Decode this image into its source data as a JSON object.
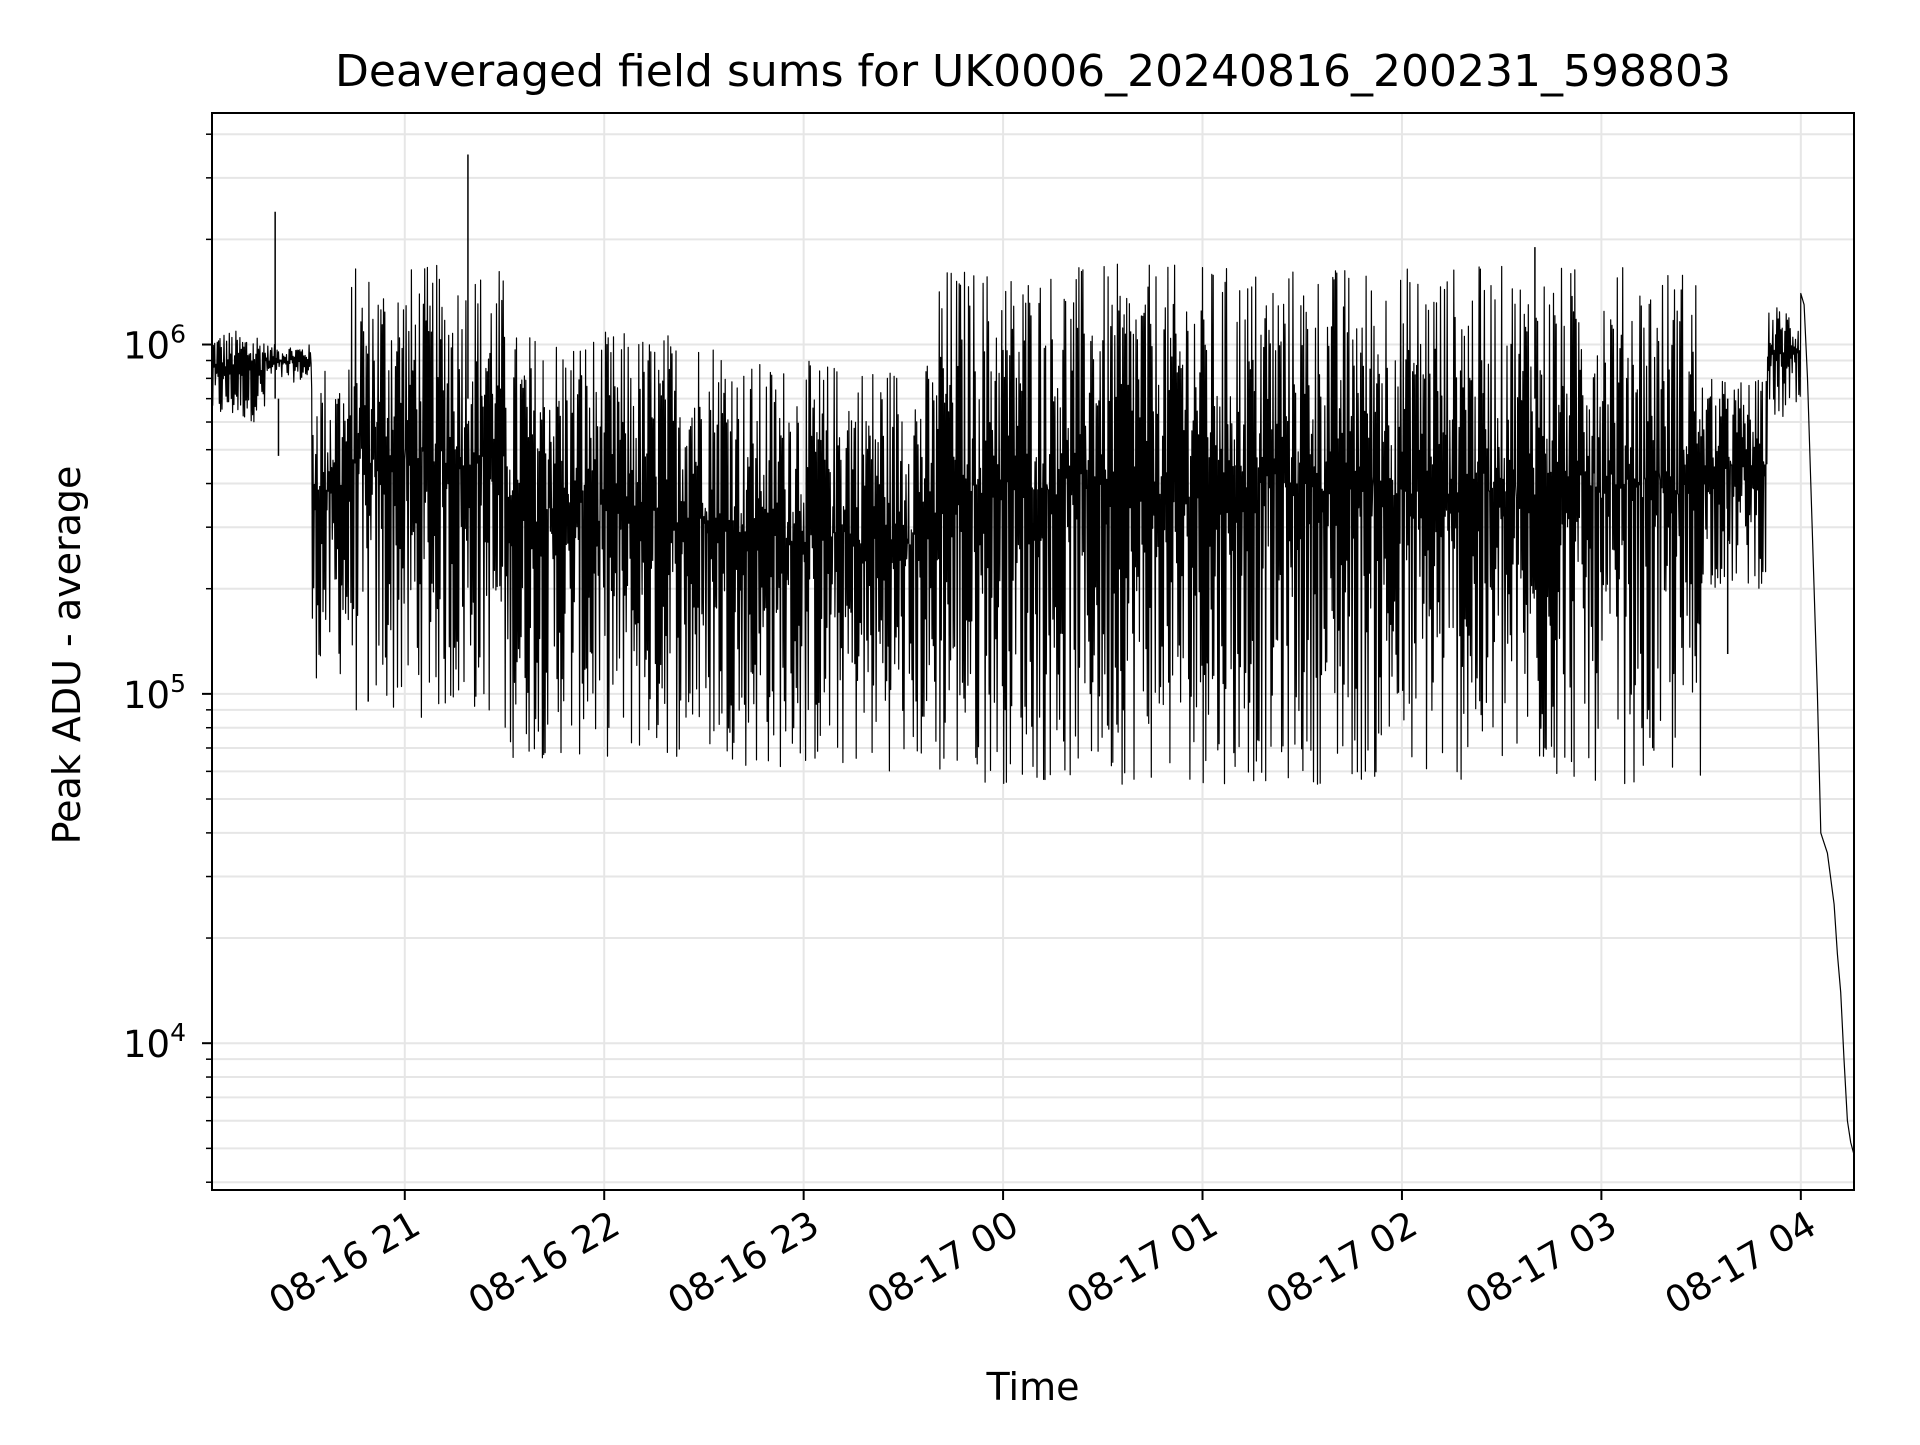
{
  "chart_data": {
    "type": "line",
    "title": "Deaveraged field sums for UK0006_20240816_200231_598803",
    "xlabel": "Time",
    "ylabel": "Peak ADU - average",
    "y_scale": "log",
    "ylim": [
      3800,
      4600000
    ],
    "xlim": [
      "2024-08-16 20:02",
      "2024-08-17 04:16"
    ],
    "x_ticks": [
      {
        "value": "2024-08-16 21:00",
        "label": "08-16 21"
      },
      {
        "value": "2024-08-16 22:00",
        "label": "08-16 22"
      },
      {
        "value": "2024-08-16 23:00",
        "label": "08-16 23"
      },
      {
        "value": "2024-08-17 00:00",
        "label": "08-17 00"
      },
      {
        "value": "2024-08-17 01:00",
        "label": "08-17 01"
      },
      {
        "value": "2024-08-17 02:00",
        "label": "08-17 02"
      },
      {
        "value": "2024-08-17 03:00",
        "label": "08-17 03"
      },
      {
        "value": "2024-08-17 04:00",
        "label": "08-17 04"
      }
    ],
    "y_ticks": [
      {
        "value": 10000,
        "base": "10",
        "exp": "4"
      },
      {
        "value": 100000,
        "base": "10",
        "exp": "5"
      },
      {
        "value": 1000000,
        "base": "10",
        "exp": "6"
      }
    ],
    "grid": true,
    "line_color": "#000000",
    "segments": [
      {
        "start": "2024-08-16 20:02",
        "end": "2024-08-16 20:18",
        "low": 600000,
        "high": 1100000
      },
      {
        "start": "2024-08-16 20:18",
        "end": "2024-08-16 20:32",
        "low": 780000,
        "high": 1000000
      },
      {
        "start": "2024-08-16 20:32",
        "end": "2024-08-16 20:44",
        "low": 110000,
        "high": 900000
      },
      {
        "start": "2024-08-16 20:44",
        "end": "2024-08-16 21:30",
        "low": 85000,
        "high": 1700000
      },
      {
        "start": "2024-08-16 21:30",
        "end": "2024-08-16 22:40",
        "low": 65000,
        "high": 1100000
      },
      {
        "start": "2024-08-16 22:40",
        "end": "2024-08-16 23:40",
        "low": 60000,
        "high": 900000
      },
      {
        "start": "2024-08-16 23:40",
        "end": "2024-08-17 03:30",
        "low": 55000,
        "high": 1700000
      },
      {
        "start": "2024-08-17 03:30",
        "end": "2024-08-17 03:50",
        "low": 200000,
        "high": 800000
      },
      {
        "start": "2024-08-17 03:50",
        "end": "2024-08-17 04:00",
        "low": 600000,
        "high": 1300000
      }
    ],
    "spikes": [
      {
        "time": "2024-08-16 20:21",
        "value": 2400000
      },
      {
        "time": "2024-08-16 20:22",
        "value": 480000
      },
      {
        "time": "2024-08-16 20:40",
        "value": 330000
      },
      {
        "time": "2024-08-16 20:49",
        "value": 95000
      },
      {
        "time": "2024-08-16 21:19",
        "value": 3500000
      },
      {
        "time": "2024-08-17 02:40",
        "value": 1900000
      },
      {
        "time": "2024-08-17 03:38",
        "value": 130000
      }
    ],
    "decay": [
      {
        "time": "2024-08-17 04:00",
        "value": 1400000
      },
      {
        "time": "2024-08-17 04:01",
        "value": 1300000
      },
      {
        "time": "2024-08-17 04:02",
        "value": 800000
      },
      {
        "time": "2024-08-17 04:03",
        "value": 400000
      },
      {
        "time": "2024-08-17 04:04",
        "value": 200000
      },
      {
        "time": "2024-08-17 04:05",
        "value": 100000
      },
      {
        "time": "2024-08-17 04:06",
        "value": 40000
      },
      {
        "time": "2024-08-17 04:08",
        "value": 35000
      },
      {
        "time": "2024-08-17 04:10",
        "value": 25000
      },
      {
        "time": "2024-08-17 04:11",
        "value": 18000
      },
      {
        "time": "2024-08-17 04:12",
        "value": 14000
      },
      {
        "time": "2024-08-17 04:13",
        "value": 9000
      },
      {
        "time": "2024-08-17 04:14",
        "value": 6000
      },
      {
        "time": "2024-08-17 04:15",
        "value": 5200
      },
      {
        "time": "2024-08-17 04:16",
        "value": 4800
      }
    ]
  }
}
